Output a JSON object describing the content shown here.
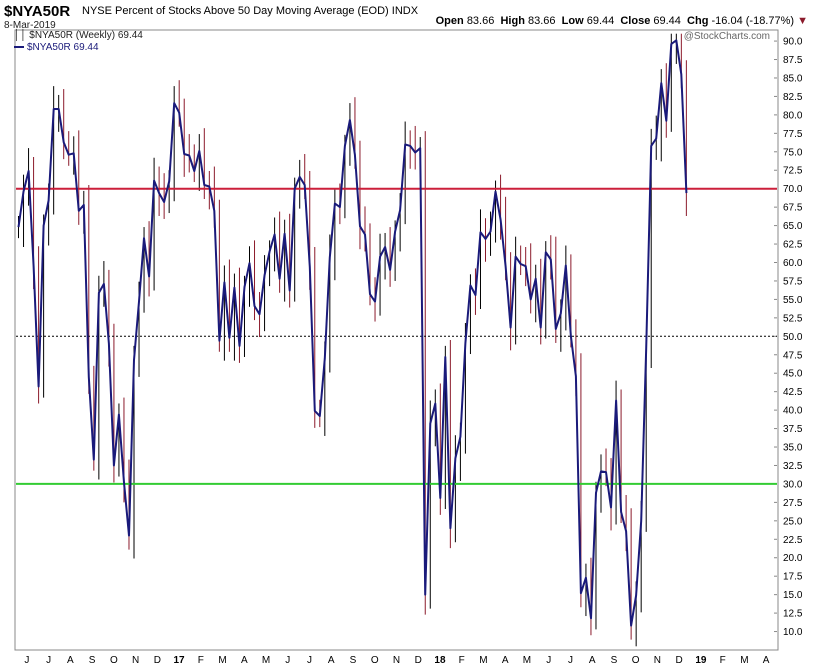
{
  "header": {
    "symbol": "$NYA50R",
    "description": "NYSE Percent of Stocks Above 50 Day Moving Average (EOD)",
    "exchange": "INDX",
    "date": "8-Mar-2019",
    "open_label": "Open",
    "open_value": "83.66",
    "high_label": "High",
    "high_value": "83.66",
    "low_label": "Low",
    "low_value": "69.44",
    "close_label": "Close",
    "close_value": "69.44",
    "chg_label": "Chg",
    "chg_value": "-16.04 (-18.77%)",
    "watermark": "@StockCharts.com"
  },
  "legend": {
    "line1": "$NYA50R (Weekly) 69.44",
    "line2": "$NYA50R 69.44"
  },
  "colors": {
    "line": "#1a1a7a",
    "bar_up": "#000000",
    "bar_down": "#8b1a2b",
    "upper_line": "#cc1f3a",
    "lower_line": "#33cc33",
    "mid_line": "#000000"
  },
  "chart_data": {
    "type": "line",
    "title": "$NYA50R (Weekly)",
    "y_ticks": [
      10.0,
      12.5,
      15.0,
      17.5,
      20.0,
      22.5,
      25.0,
      27.5,
      30.0,
      32.5,
      35.0,
      37.5,
      40.0,
      42.5,
      45.0,
      47.5,
      50.0,
      52.5,
      55.0,
      57.5,
      60.0,
      62.5,
      65.0,
      67.5,
      70.0,
      72.5,
      75.0,
      77.5,
      80.0,
      82.5,
      85.0,
      87.5,
      90.0
    ],
    "ylim": [
      7.5,
      91.5
    ],
    "reference_lines": [
      {
        "value": 70,
        "style": "solid",
        "color": "#cc1f3a"
      },
      {
        "value": 50,
        "style": "dotted",
        "color": "#000000"
      },
      {
        "value": 30,
        "style": "solid",
        "color": "#33cc33"
      }
    ],
    "x_labels": [
      "J",
      "J",
      "A",
      "S",
      "O",
      "N",
      "D",
      "17",
      "F",
      "M",
      "A",
      "M",
      "J",
      "J",
      "A",
      "S",
      "O",
      "N",
      "D",
      "18",
      "F",
      "M",
      "A",
      "M",
      "J",
      "J",
      "A",
      "S",
      "O",
      "N",
      "D",
      "19",
      "F",
      "M",
      "A"
    ],
    "x_label_bold": [
      false,
      false,
      false,
      false,
      false,
      false,
      false,
      true,
      false,
      false,
      false,
      false,
      false,
      false,
      false,
      false,
      false,
      false,
      false,
      true,
      false,
      false,
      false,
      false,
      false,
      false,
      false,
      false,
      false,
      false,
      false,
      true,
      false,
      false,
      false
    ],
    "weeks_per_month": 4.33,
    "first_week_offset": 0.5,
    "series": [
      {
        "name": "$NYA50R (Weekly)",
        "values": [
          64.8,
          69.6,
          72.4,
          59.5,
          43.2,
          65.0,
          68.4,
          80.8,
          80.8,
          76.3,
          74.6,
          74.8,
          67.0,
          67.8,
          44.5,
          33.3,
          55.9,
          57.1,
          49.0,
          32.5,
          39.4,
          30.2,
          23.0,
          46.8,
          54.7,
          63.3,
          58.1,
          71.1,
          69.4,
          68.2,
          71.0,
          81.6,
          80.3,
          74.7,
          74.5,
          72.4,
          75.1,
          70.5,
          70.3,
          67.0,
          49.4,
          57.3,
          49.8,
          56.6,
          48.7,
          56.7,
          59.9,
          54.1,
          53.0,
          58.3,
          61.5,
          63.8,
          57.8,
          63.9,
          56.2,
          70.0,
          71.6,
          70.5,
          59.4,
          39.9,
          39.2,
          47.0,
          60.7,
          68.0,
          67.5,
          75.8,
          79.3,
          74.6,
          64.9,
          63.8,
          55.7,
          54.7,
          60.8,
          62.1,
          59.0,
          64.2,
          67.1,
          76.0,
          75.8,
          74.9,
          75.5,
          15.0,
          38.2,
          40.9,
          28.1,
          47.2,
          24.0,
          33.5,
          36.4,
          49.1,
          56.9,
          55.6,
          64.1,
          63.2,
          64.2,
          69.6,
          65.8,
          59.5,
          51.2,
          60.8,
          59.8,
          59.5,
          55.0,
          57.8,
          51.2,
          61.4,
          60.4,
          51.0,
          53.1,
          59.6,
          50.0,
          44.6,
          15.2,
          17.3,
          11.8,
          28.8,
          31.7,
          31.6,
          26.8,
          41.3,
          26.2,
          23.6,
          10.8,
          14.9,
          25.0,
          48.4,
          75.8,
          76.8,
          84.3,
          79.2,
          89.6,
          90.1,
          85.5,
          69.4
        ]
      }
    ]
  }
}
